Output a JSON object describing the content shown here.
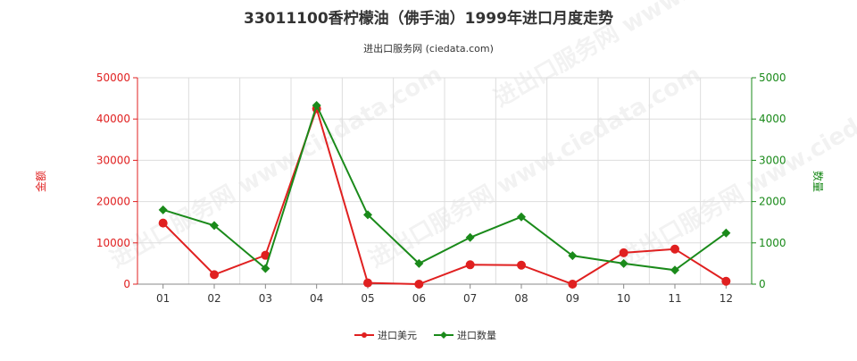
{
  "chart_data": {
    "type": "line",
    "title": "33011100香柠檬油（佛手油）1999年进口月度走势",
    "subtitle": "进出口服务网 (ciedata.com)",
    "watermark": "进出口服务网 www.ciedata.com",
    "categories": [
      "01",
      "02",
      "03",
      "04",
      "05",
      "06",
      "07",
      "08",
      "09",
      "10",
      "11",
      "12"
    ],
    "y_left": {
      "label": "金额",
      "ylim": [
        0,
        50000
      ],
      "ticks": [
        "0",
        "10000",
        "20000",
        "30000",
        "40000",
        "50000"
      ]
    },
    "y_right": {
      "label": "数量",
      "ylim": [
        0,
        5000
      ],
      "ticks": [
        "0",
        "1000",
        "2000",
        "3000",
        "4000",
        "5000"
      ]
    },
    "grid": true,
    "legend_position": "bottom-center",
    "series": [
      {
        "name": "进口美元",
        "axis": "left",
        "color": "#e02020",
        "values": [
          14800,
          2300,
          7000,
          42500,
          300,
          0,
          4700,
          4600,
          0,
          7600,
          8500,
          700
        ]
      },
      {
        "name": "进口数量",
        "axis": "right",
        "color": "#1a8a1a",
        "values": [
          1800,
          1420,
          380,
          4330,
          1680,
          500,
          1130,
          1630,
          690,
          500,
          340,
          1240
        ]
      }
    ]
  }
}
